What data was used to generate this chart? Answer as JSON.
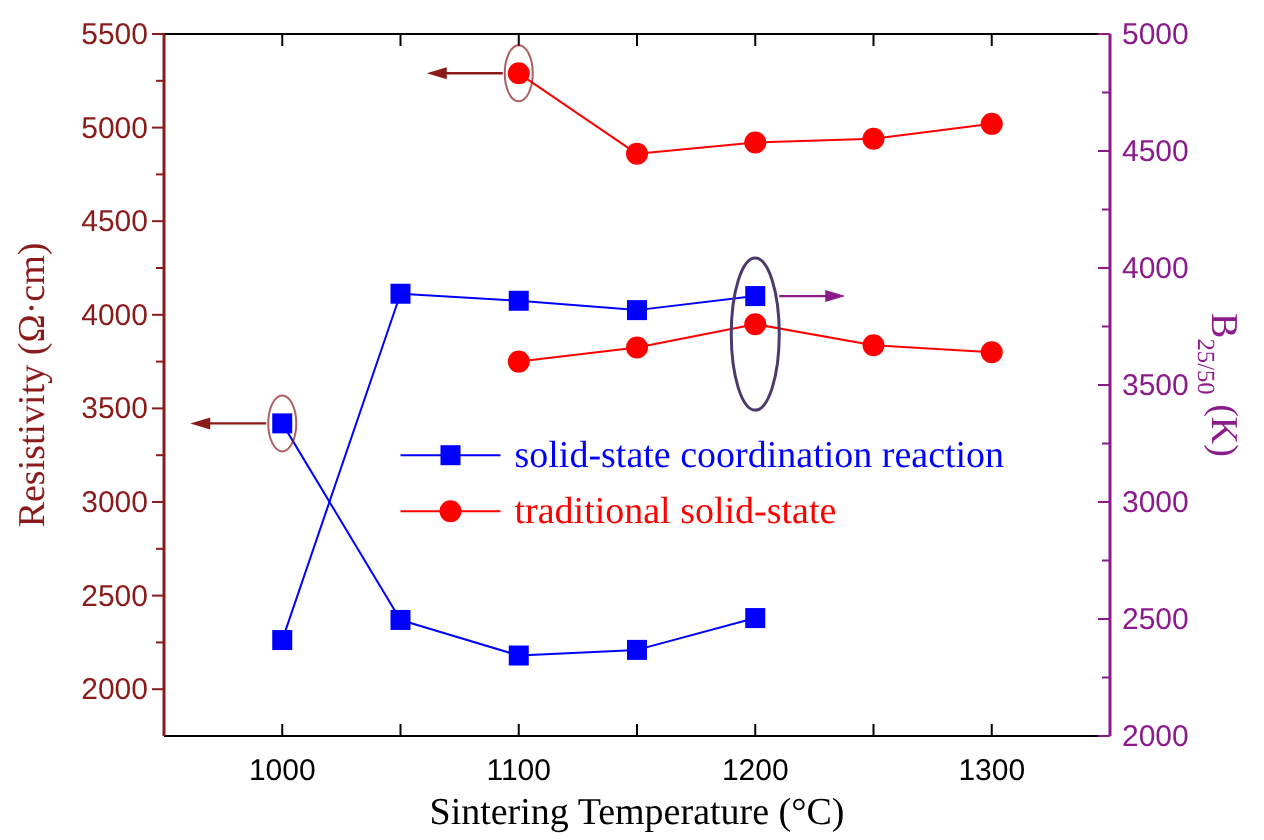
{
  "chart_data": {
    "type": "line",
    "xlabel": "Sintering Temperature (°C)",
    "ylabel": "Resistivity (Ω·cm)",
    "y2label": "B$_{25/50}$ (K)",
    "xlim": [
      950,
      1350
    ],
    "xticks": [
      1000,
      {
        "value": 1050,
        "label": null
      },
      1100,
      {
        "value": 1150,
        "label": null
      },
      1200,
      {
        "value": 1250,
        "label": null
      },
      1300
    ],
    "ylim": [
      1750,
      5500
    ],
    "yticks": [
      2000,
      {
        "value": 2250,
        "label": null
      },
      2500,
      {
        "value": 2750,
        "label": null
      },
      3000,
      {
        "value": 3250,
        "label": null
      },
      3500,
      {
        "value": 3750,
        "label": null
      },
      4000,
      {
        "value": 4250,
        "label": null
      },
      4500,
      {
        "value": 4750,
        "label": null
      },
      5000,
      {
        "value": 5250,
        "label": null
      },
      5500
    ],
    "y2lim": [
      2000,
      5000
    ],
    "y2ticks": [
      2000,
      {
        "value": 2250,
        "label": null
      },
      2500,
      {
        "value": 2750,
        "label": null
      },
      3000,
      {
        "value": 3250,
        "label": null
      },
      3500,
      {
        "value": 3750,
        "label": null
      },
      4000,
      {
        "value": 4250,
        "label": null
      },
      4500,
      {
        "value": 4750,
        "label": null
      },
      5000
    ],
    "grid": false,
    "legend": "center",
    "series": [
      {
        "name": "solid-state coordination reaction",
        "color": "#0000ff",
        "marker": "square",
        "x": [
          1000,
          1050,
          1100,
          1150,
          1200
        ],
        "values": [
          3420,
          2370,
          2180,
          2210,
          2380
        ]
      },
      {
        "color": "#0000ff",
        "marker": "square",
        "axis": "y2",
        "x": [
          1000,
          1050,
          1100,
          1150,
          1200
        ],
        "values": [
          2410,
          3890,
          3860,
          3820,
          3880
        ]
      },
      {
        "name": "traditional solid-state",
        "color": "#ff0000",
        "marker": "circle",
        "x": [
          1100,
          1150,
          1200,
          1250,
          1300
        ],
        "values": [
          5290,
          4860,
          4920,
          4940,
          5020
        ]
      },
      {
        "color": "#ff0000",
        "marker": "circle",
        "axis": "y2",
        "x": [
          1100,
          1150,
          1200,
          1250,
          1300
        ],
        "values": [
          3600,
          3660,
          3760,
          3670,
          3640
        ]
      }
    ]
  }
}
